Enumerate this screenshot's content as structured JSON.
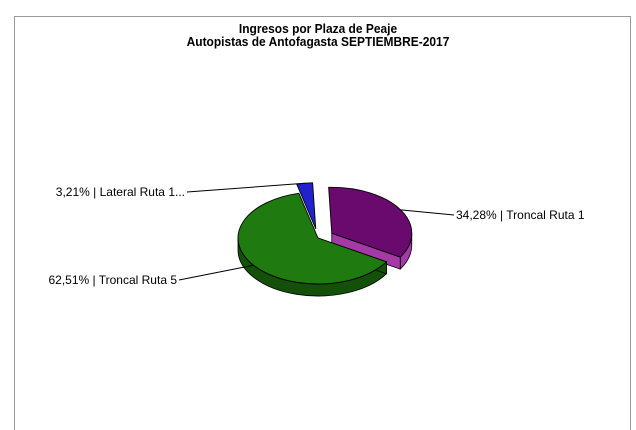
{
  "chart_data": {
    "type": "pie",
    "title": "Ingresos por Plaza de Peaje",
    "subtitle": "Autopistas de Antofagasta SEPTIEMBRE-2017",
    "slices": [
      {
        "label": "34,28% | Troncal Ruta 1",
        "name": "Troncal Ruta 1",
        "value": 34.28,
        "color": "#6a0a6e",
        "side": "#a33aa6"
      },
      {
        "label": "62,51% | Troncal Ruta 5",
        "name": "Troncal Ruta 5",
        "value": 62.51,
        "color": "#1f7a10",
        "side": "#135008"
      },
      {
        "label": "3,21% | Lateral Ruta 1...",
        "name": "Lateral Ruta 1...",
        "value": 3.21,
        "color": "#2222cc",
        "side": "#10107a"
      }
    ],
    "legend": "none"
  }
}
